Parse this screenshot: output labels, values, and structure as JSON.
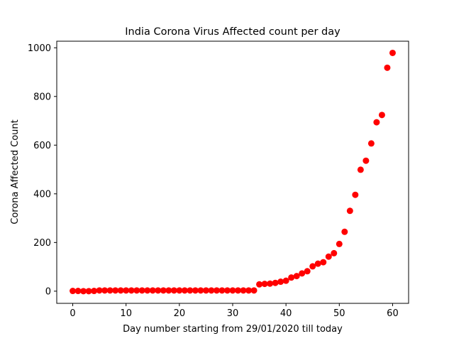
{
  "chart_data": {
    "type": "scatter",
    "title": "India Corona Virus Affected count per day",
    "xlabel": "Day number starting from 29/01/2020 till today",
    "ylabel": "Corona Affected Count",
    "xlim": [
      -3,
      63
    ],
    "ylim": [
      -50,
      1027
    ],
    "x_ticks": [
      0,
      10,
      20,
      30,
      40,
      50,
      60
    ],
    "y_ticks": [
      0,
      200,
      400,
      600,
      800,
      1000
    ],
    "grid": false,
    "legend": "none",
    "marker_color": "#ff0000",
    "series": [
      {
        "x": [
          0,
          1,
          2,
          3,
          4,
          5,
          6,
          7,
          8,
          9,
          10,
          11,
          12,
          13,
          14,
          15,
          16,
          17,
          18,
          19,
          20,
          21,
          22,
          23,
          24,
          25,
          26,
          27,
          28,
          29,
          30,
          31,
          32,
          33,
          34,
          35,
          36,
          37,
          38,
          39,
          40,
          41,
          42,
          43,
          44,
          45,
          46,
          47,
          48,
          49,
          50,
          51,
          52,
          53,
          54,
          55,
          56,
          57,
          58,
          59,
          60
        ],
        "y": [
          1,
          1,
          0,
          0,
          1,
          3,
          3,
          3,
          3,
          3,
          3,
          3,
          3,
          3,
          3,
          3,
          3,
          3,
          3,
          3,
          3,
          3,
          3,
          3,
          3,
          3,
          3,
          3,
          3,
          3,
          3,
          3,
          3,
          3,
          3,
          28,
          30,
          31,
          34,
          39,
          43,
          56,
          62,
          73,
          82,
          102,
          113,
          119,
          142,
          156,
          194,
          244,
          330,
          396,
          499,
          536,
          607,
          694,
          724,
          918,
          979
        ]
      }
    ]
  }
}
